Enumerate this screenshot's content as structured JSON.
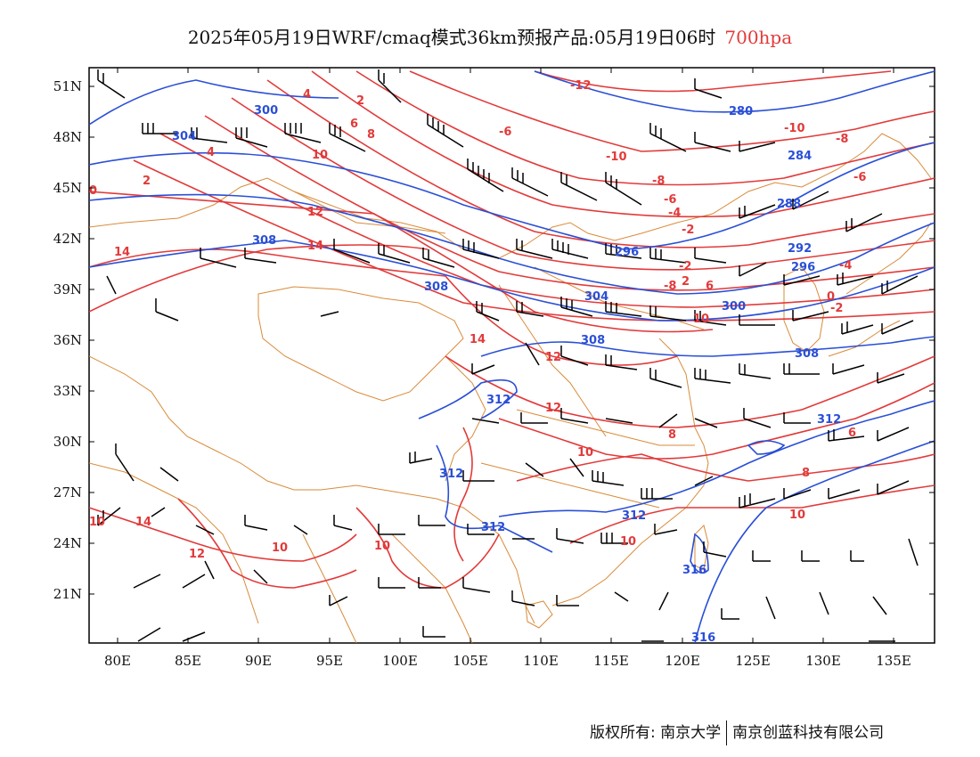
{
  "title": {
    "main": "2025年05月19日WRF/cmaq模式36km预报产品:05月19日06时",
    "level": "700hpa"
  },
  "colors": {
    "temperature": "#e23a3a",
    "height": "#2a4fd6",
    "boundary": "#d98b3a",
    "wind": "#000000"
  },
  "axes": {
    "lat_labels": [
      "51N",
      "48N",
      "45N",
      "42N",
      "39N",
      "36N",
      "33N",
      "30N",
      "27N",
      "24N",
      "21N"
    ],
    "lon_labels": [
      "80E",
      "85E",
      "90E",
      "95E",
      "100E",
      "105E",
      "110E",
      "115E",
      "120E",
      "125E",
      "130E",
      "135E"
    ]
  },
  "map_data": {
    "temperature_labels": [
      "-12",
      "-10",
      "-10",
      "-8",
      "-8",
      "-8",
      "-6",
      "-6",
      "-6",
      "-4",
      "-4",
      "-2",
      "-2",
      "-2",
      "0",
      "0",
      "2",
      "2",
      "2",
      "4",
      "4",
      "6",
      "6",
      "6",
      "8",
      "8",
      "10",
      "10",
      "10",
      "10",
      "10",
      "12",
      "12",
      "12",
      "12",
      "14",
      "14",
      "14",
      "14",
      "12",
      "10",
      "10",
      "8",
      "10",
      "12",
      "6"
    ],
    "height_labels": [
      "280",
      "284",
      "288",
      "292",
      "296",
      "296",
      "300",
      "300",
      "304",
      "304",
      "308",
      "308",
      "308",
      "308",
      "312",
      "312",
      "312",
      "312",
      "312",
      "316",
      "316"
    ]
  },
  "footer": {
    "copyright": "版权所有: 南京大学",
    "company": "南京创蓝科技有限公司"
  }
}
